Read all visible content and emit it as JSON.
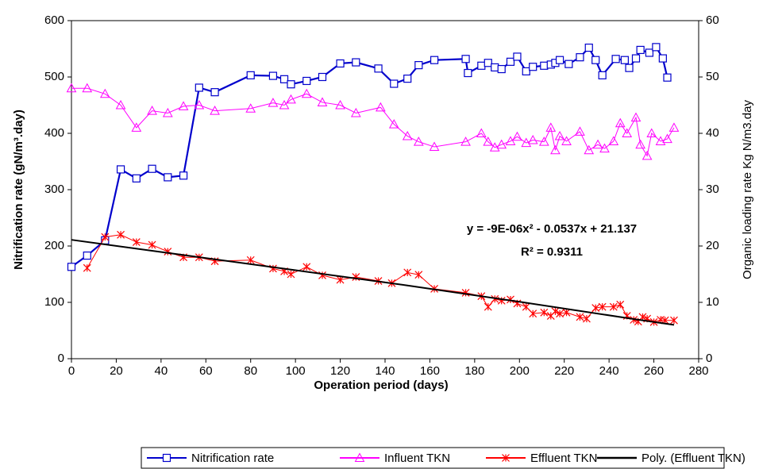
{
  "chart_data": {
    "type": "line",
    "x_label": "Operation period (days)",
    "y_label": "Nitrification rate (gN/m³.day)",
    "y2_label": "Organic loading rate Kg N/m3.day",
    "annotations": [
      "y = -9E-06x² - 0.0537x + 21.137",
      "R² = 0.9311"
    ],
    "xlim": [
      0,
      280
    ],
    "xticks": [
      0,
      20,
      40,
      60,
      80,
      100,
      120,
      140,
      160,
      180,
      200,
      220,
      240,
      260,
      280
    ],
    "ylim": [
      0,
      600
    ],
    "yticks": [
      0,
      100,
      200,
      300,
      400,
      500,
      600
    ],
    "y2lim": [
      0,
      60
    ],
    "y2ticks": [
      0,
      10,
      20,
      30,
      40,
      50,
      60
    ],
    "grid": false,
    "legend": "bottom",
    "series": [
      {
        "name": "Nitrification rate",
        "color": "#0000cc",
        "marker": "square",
        "axis": "y",
        "x": [
          0,
          7,
          15,
          22,
          29,
          36,
          43,
          50,
          57,
          64,
          80,
          90,
          95,
          98,
          105,
          112,
          120,
          127,
          137,
          144,
          150,
          155,
          162,
          176,
          177,
          183,
          186,
          189,
          192,
          196,
          199,
          203,
          206,
          211,
          214,
          216,
          218,
          222,
          227,
          231,
          234,
          237,
          243,
          247,
          249,
          252,
          254,
          258,
          261,
          264,
          266
        ],
        "values": [
          163,
          183,
          210,
          336,
          320,
          337,
          322,
          325,
          481,
          473,
          503,
          502,
          496,
          487,
          493,
          500,
          524,
          526,
          515,
          488,
          497,
          521,
          530,
          532,
          507,
          520,
          525,
          517,
          514,
          527,
          536,
          510,
          518,
          520,
          522,
          525,
          530,
          523,
          535,
          552,
          530,
          503,
          532,
          530,
          516,
          533,
          548,
          543,
          553,
          533,
          499
        ]
      },
      {
        "name": "Influent TKN",
        "color": "#ff00ff",
        "marker": "triangle",
        "axis": "y2",
        "x": [
          0,
          7,
          15,
          22,
          29,
          36,
          43,
          50,
          57,
          64,
          80,
          90,
          95,
          98,
          105,
          112,
          120,
          127,
          138,
          144,
          150,
          155,
          162,
          176,
          183,
          186,
          189,
          192,
          196,
          199,
          203,
          206,
          211,
          214,
          216,
          218,
          221,
          227,
          231,
          235,
          238,
          242,
          245,
          248,
          252,
          254,
          257,
          259,
          263,
          266,
          269
        ],
        "values": [
          48,
          48,
          47,
          45,
          41,
          44,
          43.6,
          44.8,
          45,
          44,
          44.4,
          45.4,
          45,
          46,
          47,
          45.5,
          45,
          43.6,
          44.6,
          41.6,
          39.5,
          38.5,
          37.6,
          38.5,
          40,
          38.5,
          37.5,
          38,
          38.6,
          39.4,
          38.3,
          38.8,
          38.5,
          41,
          37,
          39.5,
          38.6,
          40.3,
          37,
          38,
          37.3,
          38.6,
          41.8,
          40,
          42.8,
          38,
          36,
          40,
          38.6,
          39,
          41
        ]
      },
      {
        "name": "Effluent TKN",
        "color": "#ff0000",
        "marker": "asterisk",
        "axis": "y2",
        "x": [
          7,
          15,
          22,
          29,
          36,
          43,
          50,
          57,
          64,
          80,
          90,
          95,
          98,
          105,
          112,
          120,
          127,
          137,
          143,
          150,
          155,
          162,
          176,
          183,
          186,
          189,
          192,
          196,
          199,
          203,
          206,
          211,
          214,
          216,
          218,
          221,
          227,
          230,
          234,
          237,
          242,
          245,
          248,
          251,
          253,
          255,
          257,
          260,
          263,
          265,
          269
        ],
        "values": [
          16.1,
          21.6,
          22,
          20.7,
          20.2,
          19,
          18,
          18,
          17.3,
          17.5,
          16,
          15.5,
          15,
          16.3,
          14.8,
          14,
          14.5,
          13.8,
          13.4,
          15.3,
          14.9,
          12.4,
          11.7,
          11.1,
          9.2,
          10.6,
          10.3,
          10.5,
          9.8,
          9.2,
          8,
          8.2,
          7.6,
          8.4,
          8,
          8.2,
          7.4,
          7.1,
          9,
          9.2,
          9.2,
          9.6,
          7.6,
          6.9,
          6.6,
          7.4,
          7.1,
          6.5,
          6.9,
          6.8,
          6.8
        ]
      },
      {
        "name": "Poly. (Effluent TKN)",
        "color": "#000000",
        "marker": "none",
        "axis": "y2",
        "x": [
          0,
          50,
          100,
          150,
          200,
          250,
          269
        ],
        "values": [
          21.1,
          18.4,
          15.7,
          13.0,
          10.1,
          7.1,
          6.0
        ]
      }
    ]
  }
}
